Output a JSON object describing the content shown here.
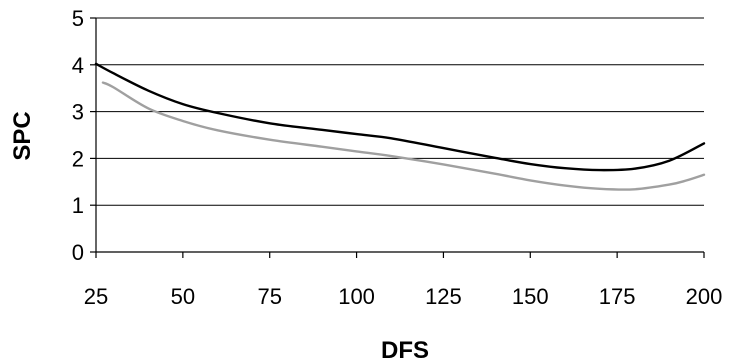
{
  "chart_data": {
    "type": "line",
    "title": "",
    "xlabel": "DFS",
    "ylabel": "SPC",
    "xlim": [
      25,
      200
    ],
    "ylim": [
      0,
      5
    ],
    "xticks": [
      "25",
      "50",
      "75",
      "100",
      "125",
      "150",
      "175",
      "200"
    ],
    "yticks": [
      "0",
      "1",
      "2",
      "3",
      "4",
      "5"
    ],
    "grid": "horizontal",
    "legend": "none",
    "series": [
      {
        "color": "#000000",
        "x": [
          25,
          30,
          40,
          50,
          60,
          75,
          90,
          100,
          110,
          125,
          140,
          150,
          160,
          170,
          180,
          190,
          200
        ],
        "y": [
          4.02,
          3.82,
          3.45,
          3.16,
          2.97,
          2.75,
          2.61,
          2.52,
          2.43,
          2.22,
          2.01,
          1.88,
          1.79,
          1.75,
          1.78,
          1.95,
          2.32
        ]
      },
      {
        "color": "#a0a0a0",
        "x": [
          27,
          30,
          40,
          50,
          60,
          75,
          90,
          100,
          110,
          125,
          140,
          150,
          160,
          170,
          180,
          190,
          195,
          200
        ],
        "y": [
          3.62,
          3.52,
          3.07,
          2.8,
          2.6,
          2.4,
          2.25,
          2.15,
          2.05,
          1.87,
          1.67,
          1.53,
          1.42,
          1.35,
          1.34,
          1.44,
          1.53,
          1.65
        ]
      }
    ]
  }
}
